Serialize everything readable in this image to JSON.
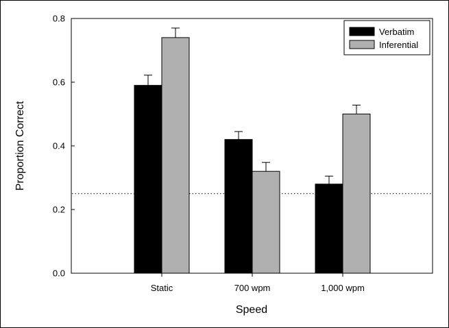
{
  "chart_data": {
    "type": "bar",
    "categories": [
      "Static",
      "700 wpm",
      "1,000 wpm"
    ],
    "series": [
      {
        "name": "Verbatim",
        "color": "#000000",
        "values": [
          0.59,
          0.42,
          0.28
        ],
        "errors": [
          0.032,
          0.025,
          0.025
        ]
      },
      {
        "name": "Inferential",
        "color": "#b0b0b0",
        "values": [
          0.74,
          0.32,
          0.5
        ],
        "errors": [
          0.03,
          0.028,
          0.028
        ]
      }
    ],
    "title": "",
    "xlabel": "Speed",
    "ylabel": "Proportion Correct",
    "ylim": [
      0,
      0.8
    ],
    "yticks": [
      0.0,
      0.2,
      0.4,
      0.6,
      0.8
    ],
    "ytick_labels": [
      "0.0",
      "0.2",
      "0.4",
      "0.6",
      "0.8"
    ],
    "reference_line": {
      "y": 0.25,
      "style": "dotted"
    },
    "legend_position": "top-right",
    "grid": false
  }
}
